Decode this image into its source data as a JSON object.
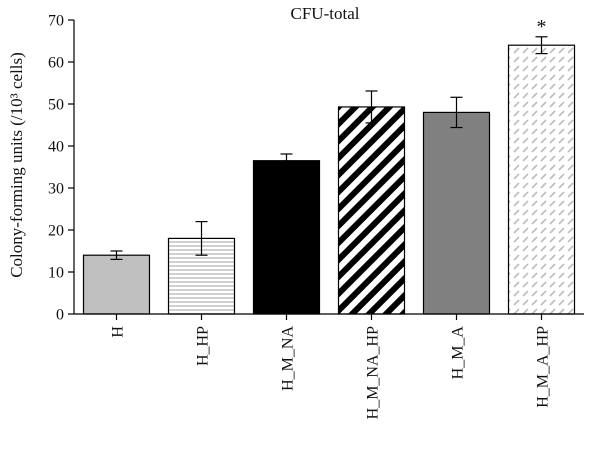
{
  "chart_data": {
    "type": "bar",
    "title": "CFU-total",
    "ylabel": "Colony-forming units (/10³ cells)",
    "xlabel": "",
    "ylim": [
      0,
      70
    ],
    "yticks": [
      0,
      10,
      20,
      30,
      40,
      50,
      60,
      70
    ],
    "grid": false,
    "categories": [
      "H",
      "H_HP",
      "H_M_NA",
      "H_M_NA_HP",
      "H_M_A",
      "H_M_A_HP"
    ],
    "values": [
      14,
      18,
      36.5,
      49.3,
      48,
      64
    ],
    "errors": [
      1,
      4,
      1.6,
      3.8,
      3.6,
      2
    ],
    "bar_styles": [
      {
        "fill": "#c0c0c0",
        "pattern": "none"
      },
      {
        "fill": "#ffffff",
        "pattern": "horizontal-lines",
        "pattern_color": "#bdbdbd"
      },
      {
        "fill": "#000000",
        "pattern": "none"
      },
      {
        "fill": "#ffffff",
        "pattern": "diagonal-stripes-heavy",
        "pattern_color": "#000000"
      },
      {
        "fill": "#808080",
        "pattern": "none"
      },
      {
        "fill": "#ffffff",
        "pattern": "diagonal-dashes",
        "pattern_color": "#bdbdbd"
      }
    ],
    "annotations": [
      {
        "category": "H_M_A_HP",
        "text": "*"
      }
    ]
  }
}
